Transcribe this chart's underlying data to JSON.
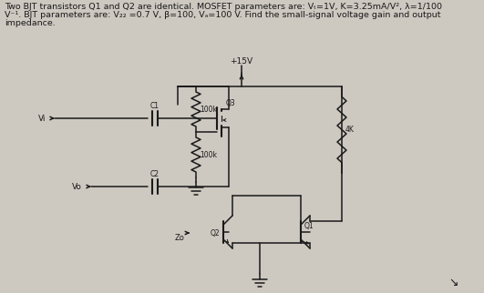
{
  "bg_color": "#cdc8c0",
  "line_color": "#1a1a1a",
  "text_color": "#1a1a1a",
  "header_line1": "Two BJT transistors Q1 and Q2 are identical. MOSFET parameters are: Vₜ=1V, K=3.25mA/V², λ=1/100",
  "header_line2": "V⁻¹. BJT parameters are: V₂₂ =0.7 V, β=100, Vₐ=100 V. Find the small-signal voltage gain and output",
  "header_line3": "impedance.",
  "vdd_label": "+15V",
  "res1_label": "100k",
  "res2_label": "100k",
  "res4k_label": "4K",
  "q3_label": "Q3",
  "q2_label": "Q2",
  "q1_label": "Q1",
  "c1_label": "C1",
  "c2_label": "C2",
  "vi_label": "Vi",
  "vo_label": "Vo",
  "zo_label": "Zo"
}
